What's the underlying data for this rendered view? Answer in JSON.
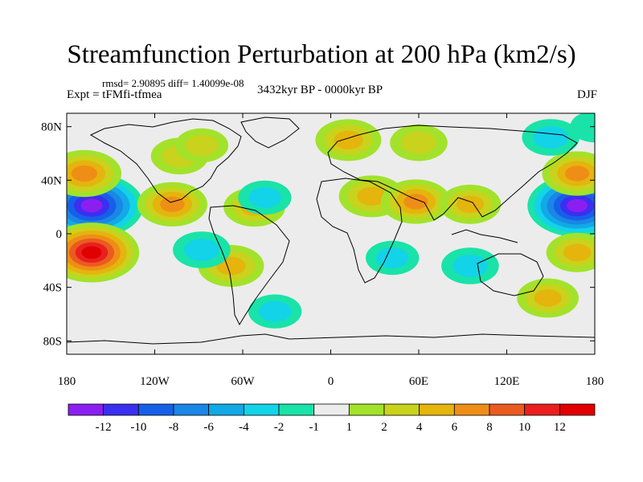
{
  "title": "Streamfunction Perturbation at 200 hPa (km2/s)",
  "stats": "rmsd= 2.90895 diff= 1.40099e-08",
  "experiment": "Expt = tFMfi-tfmea",
  "period": "3432kyr BP - 0000kyr BP",
  "season": "DJF",
  "lat_labels": [
    "80N",
    "40N",
    "0",
    "40S",
    "80S"
  ],
  "lon_labels": [
    "180",
    "120W",
    "60W",
    "0",
    "60E",
    "120E",
    "180"
  ],
  "colorbar": {
    "labels": [
      "-12",
      "-10",
      "-8",
      "-6",
      "-4",
      "-2",
      "-1",
      "1",
      "2",
      "4",
      "6",
      "8",
      "10",
      "12"
    ],
    "colors": [
      "#8b1ff0",
      "#3b2ff0",
      "#1660e8",
      "#1a86e6",
      "#12a9e6",
      "#13d3e8",
      "#19e3a8",
      "#ececec",
      "#a3e22a",
      "#c9d21c",
      "#e5b40d",
      "#ef8e16",
      "#ea5b20",
      "#ea1f1f",
      "#e00000"
    ]
  },
  "anomalies": [
    {
      "lon": -163,
      "lat": 21,
      "value": -14
    },
    {
      "lon": -163,
      "lat": -14,
      "value": 12
    },
    {
      "lon": -168,
      "lat": 45,
      "value": 7
    },
    {
      "lon": 168,
      "lat": 21,
      "value": -13
    },
    {
      "lon": 168,
      "lat": 45,
      "value": 6
    },
    {
      "lon": 168,
      "lat": -14,
      "value": 4
    },
    {
      "lon": -108,
      "lat": 22,
      "value": 6
    },
    {
      "lon": -103,
      "lat": 58,
      "value": 3
    },
    {
      "lon": -88,
      "lat": 66,
      "value": 2
    },
    {
      "lon": -52,
      "lat": 20,
      "value": 4
    },
    {
      "lon": -68,
      "lat": -24,
      "value": 5
    },
    {
      "lon": -45,
      "lat": 27,
      "value": -2
    },
    {
      "lon": -88,
      "lat": -12,
      "value": -3
    },
    {
      "lon": 12,
      "lat": 70,
      "value": 5
    },
    {
      "lon": 60,
      "lat": 68,
      "value": 3
    },
    {
      "lon": 28,
      "lat": 28,
      "value": 5
    },
    {
      "lon": 58,
      "lat": 24,
      "value": 6
    },
    {
      "lon": 95,
      "lat": 22,
      "value": 4
    },
    {
      "lon": 42,
      "lat": -18,
      "value": -2
    },
    {
      "lon": 95,
      "lat": -24,
      "value": -3
    },
    {
      "lon": 148,
      "lat": -48,
      "value": 4
    },
    {
      "lon": 150,
      "lat": 72,
      "value": -3
    },
    {
      "lon": -38,
      "lat": -58,
      "value": -2
    },
    {
      "lon": 180,
      "lat": 80,
      "value": -1
    }
  ]
}
